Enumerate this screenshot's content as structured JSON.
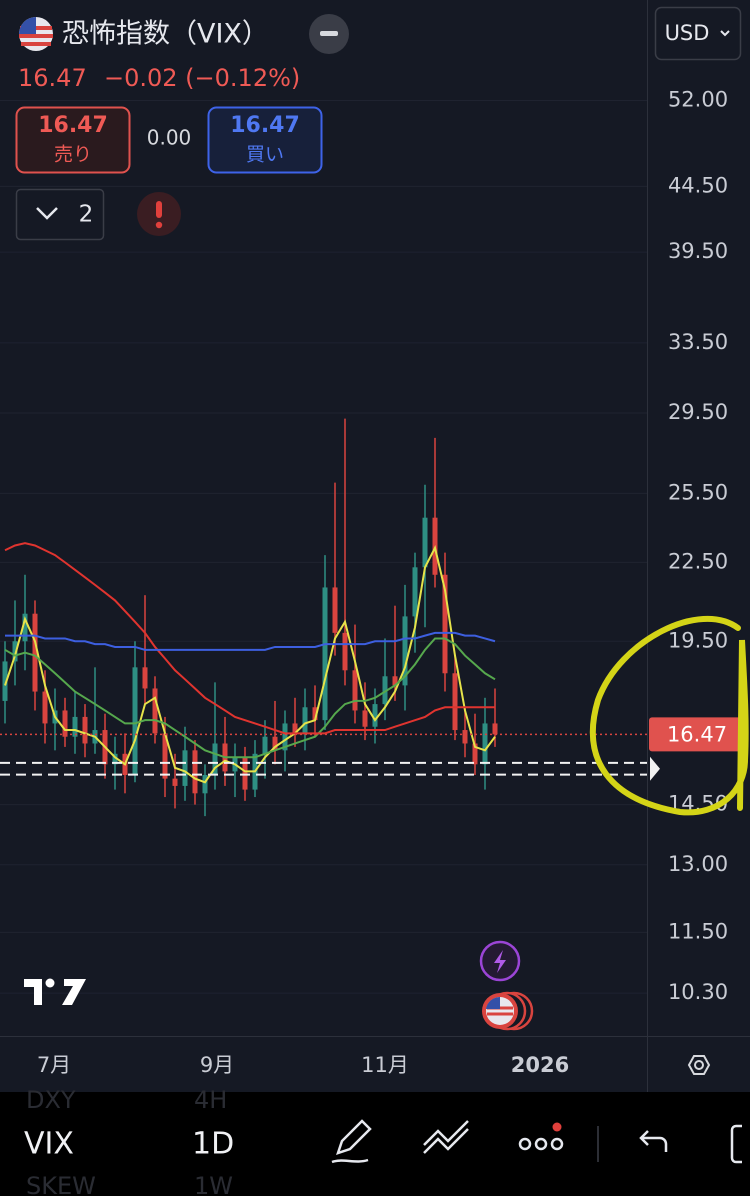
{
  "header": {
    "title": "恐怖指数（VIX）",
    "price": "16.47",
    "change": "−0.02 (−0.12%)",
    "currency": "USD"
  },
  "order_panel": {
    "sell_price": "16.47",
    "sell_label": "売り",
    "spread": "0.00",
    "buy_price": "16.47",
    "buy_label": "買い",
    "indicator_count": "2"
  },
  "chart_data": {
    "type": "candlestick",
    "log_scale": true,
    "grid": true,
    "up_color": "#2e8f83",
    "down_color": "#d9443f",
    "ylim": [
      9.53,
      62.4
    ],
    "yticks": [
      {
        "value": 52,
        "label": "52.00"
      },
      {
        "value": 44.5,
        "label": "44.50"
      },
      {
        "value": 39.5,
        "label": "39.50"
      },
      {
        "value": 33.5,
        "label": "33.50"
      },
      {
        "value": 29.5,
        "label": "29.50"
      },
      {
        "value": 25.5,
        "label": "25.50"
      },
      {
        "value": 22.5,
        "label": "22.50"
      },
      {
        "value": 19.5,
        "label": "19.50"
      },
      {
        "value": 14.5,
        "label": "14.50"
      },
      {
        "value": 13,
        "label": "13.00"
      },
      {
        "value": 11.5,
        "label": "11.50"
      },
      {
        "value": 10.3,
        "label": "10.30"
      }
    ],
    "x_labels": [
      "7月",
      "9月",
      "11月",
      "2026"
    ],
    "last_price": 16.47,
    "order_lines": [
      15.64,
      15.31
    ],
    "candles": [
      [
        17.5,
        19.5,
        16.8,
        18.8
      ],
      [
        18.8,
        21,
        18,
        19.5
      ],
      [
        19.5,
        22,
        18.5,
        20.5
      ],
      [
        20.5,
        21,
        17.2,
        17.8
      ],
      [
        17.8,
        18.5,
        16.2,
        16.8
      ],
      [
        16.8,
        17.9,
        16.0,
        17.2
      ],
      [
        17.2,
        17.6,
        16.1,
        16.4
      ],
      [
        16.4,
        17.8,
        15.9,
        17.0
      ],
      [
        17.0,
        17.4,
        15.8,
        16.2
      ],
      [
        16.2,
        18.6,
        15.9,
        16.6
      ],
      [
        16.6,
        17.1,
        15.2,
        15.6
      ],
      [
        15.6,
        16.4,
        14.9,
        15.9
      ],
      [
        15.9,
        16.5,
        14.8,
        15.3
      ],
      [
        15.3,
        19.5,
        15.1,
        18.6
      ],
      [
        18.6,
        21.2,
        17.4,
        17.9
      ],
      [
        17.9,
        18.3,
        16.2,
        16.5
      ],
      [
        16.5,
        17.0,
        14.7,
        15.2
      ],
      [
        15.2,
        15.9,
        14.4,
        15.0
      ],
      [
        15.0,
        16.7,
        14.6,
        16.0
      ],
      [
        16.0,
        16.3,
        14.5,
        14.8
      ],
      [
        14.8,
        15.6,
        14.2,
        15.3
      ],
      [
        15.3,
        18.1,
        14.9,
        16.2
      ],
      [
        16.2,
        17.0,
        15.0,
        15.4
      ],
      [
        15.4,
        16.2,
        14.7,
        15.8
      ],
      [
        15.8,
        16.1,
        14.6,
        14.9
      ],
      [
        14.9,
        16.3,
        14.7,
        15.9
      ],
      [
        15.9,
        16.9,
        15.2,
        16.4
      ],
      [
        16.4,
        17.5,
        15.6,
        16.0
      ],
      [
        16.0,
        17.2,
        15.4,
        16.8
      ],
      [
        16.8,
        17.6,
        16.1,
        16.5
      ],
      [
        16.5,
        17.9,
        16.0,
        17.3
      ],
      [
        17.3,
        18.0,
        16.4,
        16.9
      ],
      [
        16.9,
        22.8,
        16.6,
        21.5
      ],
      [
        21.5,
        26.0,
        19.0,
        19.8
      ],
      [
        19.8,
        29.2,
        18.0,
        18.5
      ],
      [
        18.5,
        20.1,
        16.8,
        17.2
      ],
      [
        17.2,
        18.1,
        16.3,
        16.7
      ],
      [
        16.7,
        17.9,
        16.2,
        17.4
      ],
      [
        17.4,
        19.6,
        16.9,
        18.3
      ],
      [
        18.3,
        20.8,
        17.5,
        18.0
      ],
      [
        18.0,
        21.6,
        17.2,
        20.4
      ],
      [
        20.4,
        22.9,
        19.1,
        22.3
      ],
      [
        22.3,
        25.9,
        20.0,
        24.4
      ],
      [
        24.4,
        28.2,
        21.5,
        22.0
      ],
      [
        22.0,
        22.9,
        17.8,
        18.4
      ],
      [
        18.4,
        19.0,
        16.3,
        16.6
      ],
      [
        16.6,
        17.3,
        15.8,
        16.2
      ],
      [
        16.2,
        17.1,
        15.3,
        15.6
      ],
      [
        15.6,
        17.6,
        14.9,
        16.8
      ],
      [
        16.8,
        17.9,
        16.1,
        16.47
      ]
    ],
    "series": [
      {
        "color": "#e6e34a",
        "values": [
          18,
          19,
          20.3,
          19.5,
          18,
          17,
          16.6,
          16.6,
          16.5,
          16.4,
          16.1,
          15.8,
          15.6,
          16.3,
          17.4,
          17.6,
          16.5,
          15.5,
          15.4,
          15.2,
          15.1,
          15.5,
          15.7,
          15.6,
          15.4,
          15.4,
          15.8,
          16.1,
          16.3,
          16.5,
          16.8,
          16.9,
          18.2,
          19.6,
          20.2,
          18.8,
          17.4,
          16.9,
          17.3,
          17.8,
          18.6,
          20.0,
          22.3,
          23.1,
          21.4,
          19.0,
          17.2,
          16.1,
          16.0,
          16.4
        ]
      },
      {
        "color": "#56a84d",
        "values": [
          19.2,
          19.0,
          19.1,
          19.0,
          18.7,
          18.4,
          18.1,
          17.8,
          17.6,
          17.4,
          17.2,
          17.0,
          16.8,
          16.8,
          16.9,
          16.9,
          16.8,
          16.6,
          16.4,
          16.2,
          16.0,
          15.9,
          15.8,
          15.8,
          15.8,
          15.8,
          15.9,
          16.0,
          16.1,
          16.2,
          16.3,
          16.4,
          16.7,
          17.1,
          17.4,
          17.5,
          17.5,
          17.6,
          17.8,
          18.0,
          18.3,
          18.7,
          19.2,
          19.6,
          19.6,
          19.4,
          19.0,
          18.7,
          18.4,
          18.2
        ]
      },
      {
        "color": "#e0342f",
        "values": [
          23.0,
          23.2,
          23.3,
          23.2,
          23.0,
          22.8,
          22.5,
          22.2,
          21.9,
          21.6,
          21.3,
          21.0,
          20.6,
          20.2,
          19.8,
          19.3,
          18.9,
          18.5,
          18.2,
          17.9,
          17.6,
          17.4,
          17.2,
          17.0,
          16.9,
          16.8,
          16.7,
          16.6,
          16.5,
          16.5,
          16.5,
          16.5,
          16.5,
          16.6,
          16.6,
          16.6,
          16.6,
          16.6,
          16.6,
          16.7,
          16.8,
          16.9,
          17.0,
          17.2,
          17.3,
          17.3,
          17.3,
          17.3,
          17.3,
          17.3
        ]
      },
      {
        "color": "#3d5fe0",
        "values": [
          19.7,
          19.7,
          19.7,
          19.7,
          19.6,
          19.6,
          19.6,
          19.5,
          19.5,
          19.4,
          19.4,
          19.3,
          19.3,
          19.3,
          19.2,
          19.2,
          19.2,
          19.2,
          19.2,
          19.2,
          19.2,
          19.2,
          19.2,
          19.2,
          19.2,
          19.2,
          19.2,
          19.3,
          19.3,
          19.3,
          19.3,
          19.3,
          19.4,
          19.4,
          19.4,
          19.4,
          19.4,
          19.5,
          19.5,
          19.5,
          19.6,
          19.6,
          19.7,
          19.8,
          19.8,
          19.8,
          19.7,
          19.7,
          19.6,
          19.5
        ]
      }
    ]
  },
  "toolbar": {
    "symbol": "VIX",
    "interval": "1D",
    "behind_symbols": [
      "DXY",
      "SKEW"
    ],
    "behind_intervals": [
      "4H",
      "1W"
    ]
  }
}
